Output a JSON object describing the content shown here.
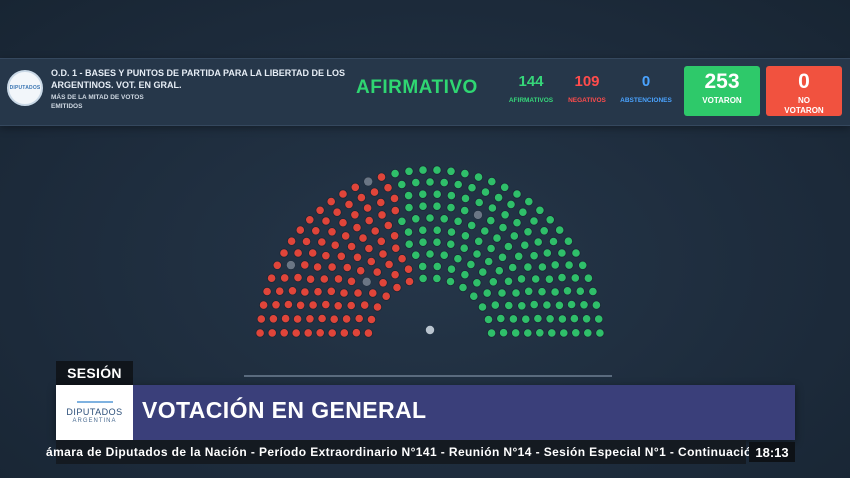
{
  "vote": {
    "logo_text": "DIPUTADOS",
    "title": "O.D. 1 - BASES Y PUNTOS DE PARTIDA PARA LA LIBERTAD DE LOS ARGENTINOS. VOT. EN GRAL.",
    "subtitle": "MÁS DE LA MITAD DE VOTOS EMITIDOS",
    "result": "AFIRMATIVO",
    "affirmative": {
      "count": "144",
      "label": "AFIRMATIVOS"
    },
    "negative": {
      "count": "109",
      "label": "NEGATIVOS"
    },
    "abstentions": {
      "count": "0",
      "label": "ABSTENCIONES"
    },
    "voted": {
      "count": "253",
      "label": "VOTARON"
    },
    "not_voted": {
      "count": "0",
      "label_line1": "NO",
      "label_line2": "VOTARON"
    }
  },
  "colors": {
    "affirmative": "#2fbf6a",
    "negative": "#e0453a",
    "absent": "#6a7685",
    "abstention": "#4aa3ff"
  },
  "hemicycle": {
    "total_seats": 257,
    "affirmative": 144,
    "negative": 109,
    "abstentions": 0,
    "absent": 4
  },
  "lower_third": {
    "section_tag": "SESIÓN",
    "logo_main": "DIPUTADOS",
    "logo_sub": "ARGENTINA",
    "title": "VOTACIÓN EN GENERAL",
    "ticker": "ámara de Diputados de la Nación - Período Extraordinario N°141 - Reunión N°14 - Sesión Especial N°1 - Continuació",
    "clock": "18:13"
  }
}
